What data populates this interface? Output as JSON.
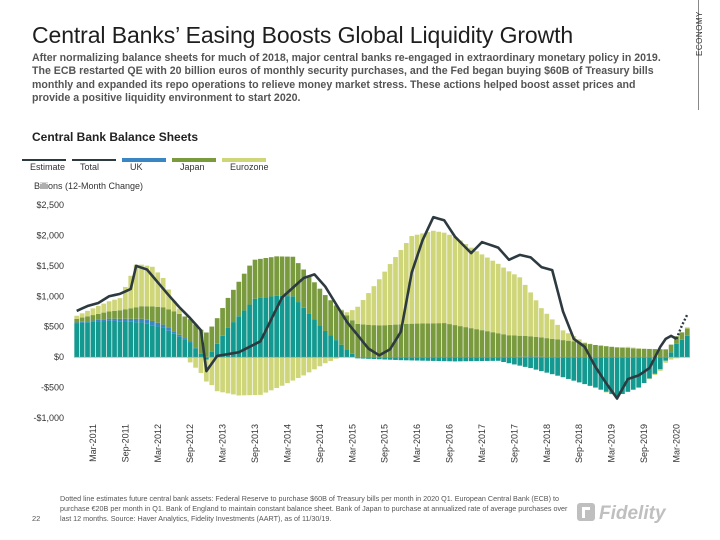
{
  "header": {
    "title": "Central Banks’ Easing Boosts Global Liquidity Growth",
    "intro": "After normalizing balance sheets for much of 2018, major central banks re-engaged in extraordinary monetary policy in 2019. The ECB restarted QE with 20 billion euros of monthly security purchases, and the Fed began buying $60B of Treasury bills monthly and expanded its repo operations to relieve money market stress. These actions helped boost asset prices and provide a positive liquidity environment to start 2020.",
    "side_label": "ECONOMY"
  },
  "footer": {
    "footnote": "Dotted line estimates future central bank assets: Federal Reserve to purchase $60B of Treasury bills per month in 2020 Q1. European Central Bank (ECB) to purchase €20B per month in Q1. Bank of England to maintain constant balance sheet. Bank of Japan to purchase at annualized rate of average purchases over last 12 months. Source: Haver Analytics, Fidelity Investments (AART), as of 11/30/19.",
    "page_number": "22",
    "logo_text": "Fidelity"
  },
  "colors": {
    "us": "#13998f",
    "uk": "#3a86c4",
    "japan": "#7a9a3e",
    "eurozone": "#cfd67a",
    "total": "#2d3a40",
    "estimate": "#2d3a40"
  },
  "chart_data": {
    "type": "bar",
    "stacked": true,
    "title": "Central Bank Balance Sheets",
    "ylabel": "Billions (12-Month Change)",
    "ylim": [
      -1000,
      2500
    ],
    "yticks": [
      -1000,
      -500,
      0,
      500,
      1000,
      1500,
      2000,
      2500
    ],
    "ytick_labels": [
      "-$1,000",
      "-$500",
      "$0",
      "$500",
      "$1,000",
      "$1,500",
      "$2,000",
      "$2,500"
    ],
    "x_tick_labels": [
      "Mar-2011",
      "Sep-2011",
      "Mar-2012",
      "Sep-2012",
      "Mar-2013",
      "Sep-2013",
      "Mar-2014",
      "Sep-2014",
      "Mar-2015",
      "Sep-2015",
      "Mar-2016",
      "Sep-2016",
      "Mar-2017",
      "Sep-2017",
      "Mar-2018",
      "Sep-2018",
      "Mar-2019",
      "Sep-2019",
      "Mar-2020"
    ],
    "x_tick_months": [
      3,
      9,
      15,
      21,
      27,
      33,
      39,
      45,
      51,
      57,
      63,
      69,
      75,
      81,
      87,
      93,
      99,
      105,
      111
    ],
    "start_month": "Jan-2011",
    "legend": [
      {
        "key": "estimate",
        "label": "Estimate"
      },
      {
        "key": "total",
        "label": "Total"
      },
      {
        "key": "uk",
        "label": "UK"
      },
      {
        "key": "japan",
        "label": "Japan"
      },
      {
        "key": "eurozone",
        "label": "Eurozone"
      }
    ],
    "series_order": [
      "us",
      "uk",
      "japan",
      "eurozone"
    ],
    "knots": {
      "us": [
        [
          0,
          560
        ],
        [
          6,
          600
        ],
        [
          12,
          570
        ],
        [
          16,
          480
        ],
        [
          21,
          240
        ],
        [
          24,
          -40
        ],
        [
          28,
          480
        ],
        [
          33,
          960
        ],
        [
          37,
          1010
        ],
        [
          40,
          1000
        ],
        [
          46,
          430
        ],
        [
          52,
          -20
        ],
        [
          60,
          -50
        ],
        [
          70,
          -70
        ],
        [
          78,
          -60
        ],
        [
          84,
          -180
        ],
        [
          90,
          -330
        ],
        [
          96,
          -500
        ],
        [
          100,
          -640
        ],
        [
          104,
          -500
        ],
        [
          108,
          -200
        ],
        [
          111,
          220
        ],
        [
          113,
          350
        ]
      ],
      "uk": [
        [
          0,
          10
        ],
        [
          8,
          40
        ],
        [
          14,
          70
        ],
        [
          18,
          40
        ],
        [
          22,
          10
        ],
        [
          26,
          0
        ],
        [
          40,
          0
        ],
        [
          50,
          0
        ],
        [
          60,
          0
        ],
        [
          70,
          0
        ],
        [
          80,
          0
        ],
        [
          84,
          10
        ],
        [
          88,
          0
        ],
        [
          100,
          0
        ],
        [
          113,
          0
        ]
      ],
      "japan": [
        [
          0,
          60
        ],
        [
          8,
          140
        ],
        [
          14,
          240
        ],
        [
          18,
          330
        ],
        [
          22,
          380
        ],
        [
          26,
          420
        ],
        [
          32,
          640
        ],
        [
          40,
          650
        ],
        [
          48,
          570
        ],
        [
          56,
          520
        ],
        [
          62,
          550
        ],
        [
          68,
          560
        ],
        [
          74,
          460
        ],
        [
          80,
          360
        ],
        [
          86,
          320
        ],
        [
          92,
          260
        ],
        [
          96,
          200
        ],
        [
          100,
          160
        ],
        [
          104,
          140
        ],
        [
          108,
          130
        ],
        [
          113,
          120
        ]
      ],
      "eurozone": [
        [
          0,
          50
        ],
        [
          4,
          130
        ],
        [
          8,
          200
        ],
        [
          11,
          700
        ],
        [
          14,
          650
        ],
        [
          16,
          480
        ],
        [
          18,
          170
        ],
        [
          20,
          0
        ],
        [
          23,
          -260
        ],
        [
          26,
          -560
        ],
        [
          30,
          -630
        ],
        [
          34,
          -620
        ],
        [
          38,
          -470
        ],
        [
          42,
          -300
        ],
        [
          46,
          -100
        ],
        [
          50,
          50
        ],
        [
          53,
          400
        ],
        [
          58,
          1000
        ],
        [
          62,
          1440
        ],
        [
          66,
          1520
        ],
        [
          70,
          1450
        ],
        [
          74,
          1280
        ],
        [
          78,
          1140
        ],
        [
          82,
          960
        ],
        [
          86,
          480
        ],
        [
          90,
          160
        ],
        [
          94,
          10
        ],
        [
          98,
          -10
        ],
        [
          102,
          20
        ],
        [
          106,
          -10
        ],
        [
          110,
          -40
        ],
        [
          113,
          20
        ]
      ],
      "total": [
        [
          0,
          760
        ],
        [
          2,
          840
        ],
        [
          4,
          890
        ],
        [
          6,
          1000
        ],
        [
          8,
          1040
        ],
        [
          10,
          1120
        ],
        [
          11,
          1500
        ],
        [
          13,
          1440
        ],
        [
          15,
          1230
        ],
        [
          17,
          1020
        ],
        [
          19,
          820
        ],
        [
          21,
          640
        ],
        [
          23,
          440
        ],
        [
          24,
          -230
        ],
        [
          26,
          20
        ],
        [
          30,
          80
        ],
        [
          34,
          260
        ],
        [
          38,
          980
        ],
        [
          42,
          1300
        ],
        [
          44,
          1360
        ],
        [
          46,
          1160
        ],
        [
          50,
          580
        ],
        [
          54,
          140
        ],
        [
          56,
          30
        ],
        [
          58,
          130
        ],
        [
          60,
          420
        ],
        [
          62,
          1390
        ],
        [
          64,
          1920
        ],
        [
          66,
          2300
        ],
        [
          68,
          2250
        ],
        [
          70,
          1980
        ],
        [
          73,
          1710
        ],
        [
          75,
          1890
        ],
        [
          78,
          1800
        ],
        [
          80,
          1600
        ],
        [
          82,
          1680
        ],
        [
          84,
          1640
        ],
        [
          86,
          1480
        ],
        [
          88,
          1430
        ],
        [
          90,
          750
        ],
        [
          92,
          300
        ],
        [
          94,
          170
        ],
        [
          96,
          -160
        ],
        [
          98,
          -430
        ],
        [
          100,
          -680
        ],
        [
          102,
          -360
        ],
        [
          104,
          -300
        ],
        [
          106,
          -180
        ],
        [
          108,
          170
        ],
        [
          109,
          300
        ],
        [
          110,
          350
        ],
        [
          111,
          300
        ]
      ],
      "estimate": [
        [
          111,
          300
        ],
        [
          112,
          520
        ],
        [
          113,
          700
        ]
      ]
    }
  }
}
